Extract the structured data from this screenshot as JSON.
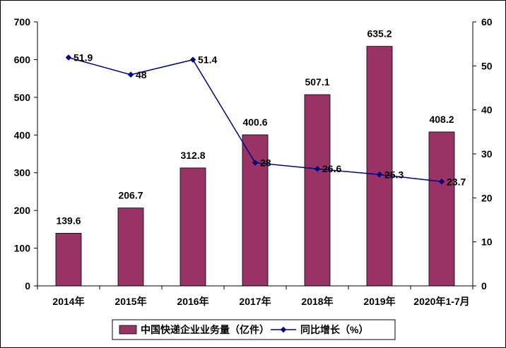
{
  "chart_data": {
    "type": "bar",
    "categories": [
      "2014年",
      "2015年",
      "2016年",
      "2017年",
      "2018年",
      "2019年",
      "2020年1-7月"
    ],
    "series": [
      {
        "name": "中国快递企业业务量（亿件）",
        "type": "bar",
        "axis": "left",
        "color": "#993366",
        "values": [
          139.6,
          206.7,
          312.8,
          400.6,
          507.1,
          635.2,
          408.2
        ],
        "labels": [
          "139.6",
          "206.7",
          "312.8",
          "400.6",
          "507.1",
          "635.2",
          "408.2"
        ]
      },
      {
        "name": "同比增长（%）",
        "type": "line",
        "axis": "right",
        "color": "#000080",
        "values": [
          51.9,
          48,
          51.4,
          28,
          26.6,
          25.3,
          23.7
        ],
        "labels": [
          "51.9",
          "48",
          "51.4",
          "28",
          "26.6",
          "25.3",
          "23.7"
        ]
      }
    ],
    "y_left": {
      "min": 0,
      "max": 700,
      "ticks": [
        "0",
        "100",
        "200",
        "300",
        "400",
        "500",
        "600",
        "700"
      ]
    },
    "y_right": {
      "min": 0,
      "max": 60,
      "ticks": [
        "0",
        "10",
        "20",
        "30",
        "40",
        "50",
        "60"
      ]
    },
    "grid": false,
    "legend": {
      "position": "bottom",
      "items": [
        {
          "label": "中国快递企业业务量（亿件）",
          "symbol": "bar",
          "color": "#993366"
        },
        {
          "label": "同比增长（%）",
          "symbol": "line-diamond",
          "color": "#000080"
        }
      ]
    }
  }
}
